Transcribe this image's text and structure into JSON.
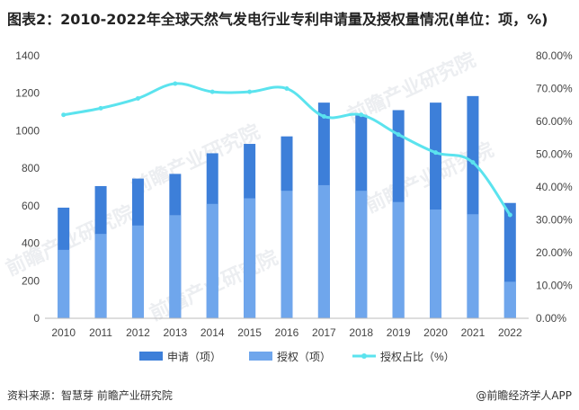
{
  "title": "图表2：2010-2022年全球天然气发电行业专利申请量及授权量情况(单位：项，%)",
  "source": "资料来源：智慧芽 前瞻产业研究院",
  "brand": "@前瞻经济学人APP",
  "watermark": "前瞻产业研究院",
  "colors": {
    "apply": "#3D7FD9",
    "grant": "#6FA6EC",
    "line": "#5BE3EE"
  },
  "chart_data": {
    "type": "bar",
    "categories": [
      "2010",
      "2011",
      "2012",
      "2013",
      "2014",
      "2015",
      "2016",
      "2017",
      "2018",
      "2019",
      "2020",
      "2021",
      "2022"
    ],
    "series": [
      {
        "name": "申请（项）",
        "type": "bar",
        "values": [
          590,
          705,
          745,
          770,
          880,
          930,
          970,
          1150,
          1085,
          1110,
          1150,
          1185,
          615
        ]
      },
      {
        "name": "授权（项）",
        "type": "bar",
        "values": [
          365,
          450,
          495,
          550,
          610,
          640,
          680,
          710,
          680,
          620,
          580,
          555,
          195
        ]
      },
      {
        "name": "授权占比（%）",
        "type": "line",
        "axis": "right",
        "values": [
          62,
          64,
          67,
          71.5,
          69,
          69,
          70,
          61.5,
          62,
          56,
          50.5,
          47.5,
          31.5
        ]
      }
    ],
    "y_left": {
      "min": 0,
      "max": 1400,
      "ticks": [
        "0",
        "200",
        "400",
        "600",
        "800",
        "1000",
        "1200",
        "1400"
      ]
    },
    "y_right": {
      "min": 0,
      "max": 80,
      "ticks": [
        "0.00%",
        "10.00%",
        "20.00%",
        "30.00%",
        "40.00%",
        "50.00%",
        "60.00%",
        "70.00%",
        "80.00%"
      ]
    },
    "legend": [
      "申请（项）",
      "授权（项）",
      "授权占比（%）"
    ]
  }
}
